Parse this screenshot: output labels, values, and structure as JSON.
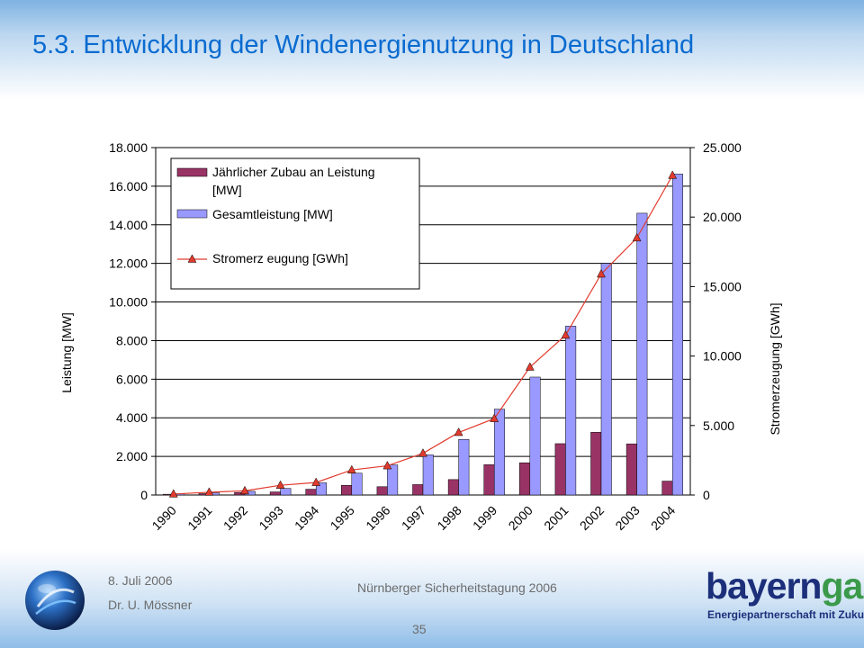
{
  "slide": {
    "title": "5.3. Entwicklung der Windenergienutzung in Deutschland"
  },
  "chart_data": {
    "type": "bar",
    "categories": [
      "1990",
      "1991",
      "1992",
      "1993",
      "1994",
      "1995",
      "1996",
      "1997",
      "1998",
      "1999",
      "2000",
      "2001",
      "2002",
      "2003",
      "2004"
    ],
    "series": [
      {
        "name": "Jährlicher Zubau an Leistung [MW]",
        "type": "bar",
        "axis": "left",
        "color": "#993366",
        "values": [
          40,
          70,
          130,
          160,
          300,
          500,
          430,
          540,
          800,
          1570,
          1670,
          2660,
          3250,
          2650,
          720
        ]
      },
      {
        "name": "Gesamtleistung [MW]",
        "type": "bar",
        "axis": "left",
        "color": "#9999ff",
        "values": [
          60,
          110,
          190,
          340,
          630,
          1130,
          1560,
          2080,
          2880,
          4450,
          6110,
          8750,
          12000,
          14600,
          16630
        ]
      },
      {
        "name": "Stromerzeugung [GWh]",
        "type": "line",
        "axis": "right",
        "color": "#e23b2e",
        "marker": "triangle",
        "values": [
          70,
          200,
          300,
          700,
          900,
          1800,
          2100,
          3000,
          4500,
          5500,
          9200,
          11500,
          15900,
          18500,
          23000
        ]
      }
    ],
    "legend_lines": [
      [
        "Jährlicher Zubau an Leistung",
        "[MW]"
      ],
      [
        "Gesamtleistung [MW]"
      ],
      [
        "Stromerz eugung [GWh]"
      ]
    ],
    "ylabel": "Leistung [MW]",
    "y2label": "Stromerzeugung [GWh]",
    "ylim": [
      0,
      18000
    ],
    "y2lim": [
      0,
      25000
    ],
    "y_ticks": [
      "0",
      "2.000",
      "4.000",
      "6.000",
      "8.000",
      "10.000",
      "12.000",
      "14.000",
      "16.000",
      "18.000"
    ],
    "y2_ticks": [
      "0",
      "5.000",
      "10.000",
      "15.000",
      "20.000",
      "25.000"
    ],
    "grid": true,
    "legend_position": "top-left"
  },
  "footer": {
    "date": "8. Juli 2006",
    "author": "Dr. U. Mössner",
    "event": "Nürnberger Sicherheitstagung 2006",
    "page": "35"
  },
  "brand": {
    "name_main": "bayern",
    "name_accent": "gas",
    "tagline": "Energiepartnerschaft mit Zukunft"
  }
}
